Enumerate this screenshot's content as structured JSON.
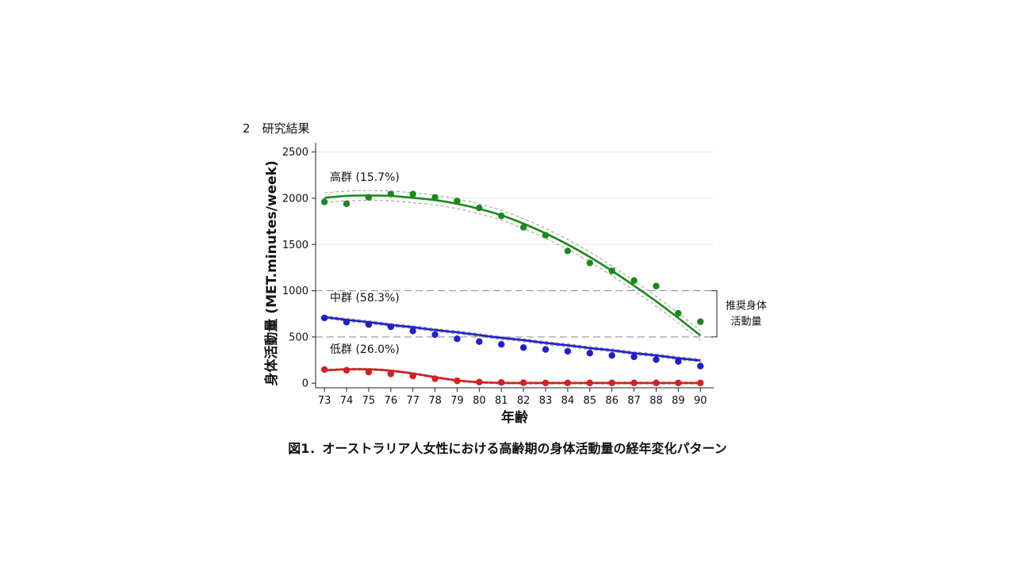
{
  "page": {
    "section_heading": "2　研究結果",
    "caption": "図1．オーストラリア人女性における高齢期の身体活動量の経年変化パターン"
  },
  "chart_data": {
    "type": "scatter",
    "title": "",
    "xlabel": "年齢",
    "ylabel": "身体活動量 (MET.minutes/week)",
    "x": [
      73,
      74,
      75,
      76,
      77,
      78,
      79,
      80,
      81,
      82,
      83,
      84,
      85,
      86,
      87,
      88,
      89,
      90
    ],
    "xlim": [
      72.6,
      90.6
    ],
    "ylim": [
      -50,
      2600
    ],
    "yticks": [
      0,
      500,
      1000,
      1500,
      2000,
      2500
    ],
    "grid": true,
    "fitted_curves": true,
    "confidence_bands": "dashed",
    "series": [
      {
        "name": "高群 (15.7%)",
        "color": "#1a8a1a",
        "points": [
          1960,
          1940,
          2010,
          2045,
          2045,
          2010,
          1970,
          1895,
          1810,
          1685,
          1600,
          1430,
          1300,
          1215,
          1110,
          1050,
          755,
          665
        ],
        "trend": [
          2005,
          2025,
          2030,
          2025,
          2005,
          1980,
          1940,
          1885,
          1815,
          1725,
          1620,
          1500,
          1365,
          1215,
          1055,
          885,
          705,
          515
        ]
      },
      {
        "name": "中群 (58.3%)",
        "color": "#1f1fcf",
        "points": [
          705,
          660,
          635,
          610,
          565,
          525,
          480,
          450,
          420,
          385,
          365,
          345,
          325,
          300,
          285,
          255,
          235,
          185
        ],
        "trend": [
          715,
          685,
          660,
          630,
          605,
          575,
          550,
          520,
          490,
          465,
          435,
          410,
          380,
          355,
          325,
          300,
          270,
          245
        ]
      },
      {
        "name": "低群 (26.0%)",
        "color": "#d42020",
        "points": [
          148,
          140,
          120,
          100,
          78,
          48,
          25,
          12,
          8,
          5,
          3,
          3,
          3,
          3,
          3,
          3,
          3,
          3
        ],
        "trend": [
          140,
          150,
          150,
          135,
          105,
          65,
          30,
          10,
          3,
          2,
          2,
          2,
          2,
          2,
          2,
          2,
          2,
          2
        ]
      }
    ],
    "reference_lines": [
      500,
      1000
    ],
    "reference_label_lines": [
      "推奨身体",
      "活動量"
    ]
  },
  "colors": {
    "grid": "#dfe8e8",
    "reference": "#8a8a8a",
    "band": "#999999"
  }
}
